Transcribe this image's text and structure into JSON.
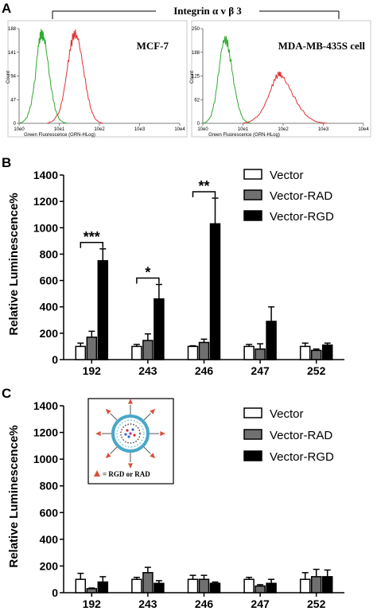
{
  "figure": {
    "panel_labels": [
      "A",
      "B",
      "C"
    ],
    "integrin_label": "Integrin α v β 3"
  },
  "chart_data": [
    {
      "id": "A-left",
      "type": "line",
      "title": "MCF-7",
      "xlabel": "Green Fluorescence (GRN-HLog)",
      "ylabel": "Count",
      "x_ticks": [
        "10e0",
        "10e1",
        "10e2",
        "10e3",
        "10e4"
      ],
      "y_ticks": [
        "0",
        "47",
        "94",
        "141",
        "188"
      ],
      "xlim_log10": [
        0,
        4
      ],
      "ylim": [
        0,
        188
      ],
      "series": [
        {
          "color": "#2eaa2e",
          "points": [
            [
              0.0,
              0
            ],
            [
              0.1,
              3
            ],
            [
              0.2,
              12
            ],
            [
              0.3,
              38
            ],
            [
              0.4,
              90
            ],
            [
              0.45,
              135
            ],
            [
              0.5,
              165
            ],
            [
              0.55,
              178
            ],
            [
              0.6,
              172
            ],
            [
              0.65,
              160
            ],
            [
              0.7,
              130
            ],
            [
              0.8,
              70
            ],
            [
              0.9,
              28
            ],
            [
              1.0,
              8
            ],
            [
              1.1,
              2
            ],
            [
              1.2,
              0
            ]
          ]
        },
        {
          "color": "#e23030",
          "points": [
            [
              0.7,
              0
            ],
            [
              0.85,
              5
            ],
            [
              1.0,
              22
            ],
            [
              1.1,
              55
            ],
            [
              1.2,
              108
            ],
            [
              1.28,
              150
            ],
            [
              1.35,
              175
            ],
            [
              1.42,
              178
            ],
            [
              1.5,
              160
            ],
            [
              1.6,
              110
            ],
            [
              1.7,
              60
            ],
            [
              1.8,
              25
            ],
            [
              1.9,
              8
            ],
            [
              2.0,
              2
            ],
            [
              2.1,
              0
            ]
          ]
        }
      ]
    },
    {
      "id": "A-right",
      "type": "line",
      "title": "MDA-MB-435S cell",
      "xlabel": "Green Fluorescence (GRN-HLog)",
      "ylabel": "Count",
      "x_ticks": [
        "10e0",
        "10e1",
        "10e2",
        "10e3",
        "10e4"
      ],
      "y_ticks": [
        "0",
        "62",
        "125",
        "188",
        "250"
      ],
      "xlim_log10": [
        0,
        4
      ],
      "ylim": [
        0,
        250
      ],
      "series": [
        {
          "color": "#2eaa2e",
          "points": [
            [
              0.0,
              0
            ],
            [
              0.1,
              4
            ],
            [
              0.2,
              18
            ],
            [
              0.3,
              60
            ],
            [
              0.4,
              140
            ],
            [
              0.47,
              200
            ],
            [
              0.55,
              225
            ],
            [
              0.62,
              210
            ],
            [
              0.7,
              160
            ],
            [
              0.8,
              90
            ],
            [
              0.9,
              40
            ],
            [
              1.0,
              12
            ],
            [
              1.1,
              3
            ],
            [
              1.2,
              0
            ]
          ]
        },
        {
          "color": "#e23030",
          "points": [
            [
              1.0,
              0
            ],
            [
              1.2,
              6
            ],
            [
              1.4,
              22
            ],
            [
              1.55,
              50
            ],
            [
              1.7,
              90
            ],
            [
              1.8,
              118
            ],
            [
              1.9,
              132
            ],
            [
              1.95,
              128
            ],
            [
              2.05,
              115
            ],
            [
              2.2,
              85
            ],
            [
              2.4,
              45
            ],
            [
              2.6,
              18
            ],
            [
              2.8,
              5
            ],
            [
              3.0,
              1
            ],
            [
              3.1,
              0
            ]
          ]
        }
      ]
    },
    {
      "id": "B",
      "type": "bar",
      "ylabel": "Relative Luminescence%",
      "ylim": [
        0,
        1400
      ],
      "y_ticks": [
        0,
        200,
        400,
        600,
        800,
        1000,
        1200,
        1400
      ],
      "categories": [
        "192",
        "243",
        "246",
        "247",
        "252"
      ],
      "series": [
        {
          "name": "Vector",
          "fill": "#ffffff",
          "values": [
            100,
            100,
            100,
            100,
            100
          ],
          "errors": [
            25,
            15,
            5,
            15,
            25
          ]
        },
        {
          "name": "Vector-RAD",
          "fill": "#707070",
          "values": [
            170,
            145,
            130,
            80,
            70
          ],
          "errors": [
            45,
            50,
            25,
            40,
            10
          ]
        },
        {
          "name": "Vector-RGD",
          "fill": "#000000",
          "values": [
            750,
            460,
            1030,
            290,
            110
          ],
          "errors": [
            90,
            110,
            195,
            110,
            15
          ]
        }
      ],
      "annotations": [
        {
          "text": "***",
          "category": "192"
        },
        {
          "text": "*",
          "category": "243"
        },
        {
          "text": "**",
          "category": "246"
        }
      ]
    },
    {
      "id": "C",
      "type": "bar",
      "ylabel": "Relative Luminescence%",
      "ylim": [
        0,
        1400
      ],
      "y_ticks": [
        0,
        200,
        400,
        600,
        800,
        1000,
        1200,
        1400
      ],
      "categories": [
        "192",
        "243",
        "246",
        "247",
        "252"
      ],
      "series": [
        {
          "name": "Vector",
          "fill": "#ffffff",
          "values": [
            100,
            100,
            100,
            100,
            100
          ],
          "errors": [
            45,
            15,
            30,
            15,
            50
          ]
        },
        {
          "name": "Vector-RAD",
          "fill": "#707070",
          "values": [
            30,
            150,
            100,
            50,
            120
          ],
          "errors": [
            5,
            40,
            30,
            10,
            55
          ]
        },
        {
          "name": "Vector-RGD",
          "fill": "#000000",
          "values": [
            80,
            70,
            70,
            70,
            120
          ],
          "errors": [
            40,
            20,
            10,
            30,
            50
          ]
        }
      ],
      "inset_caption": "= RGD or RAD"
    }
  ]
}
